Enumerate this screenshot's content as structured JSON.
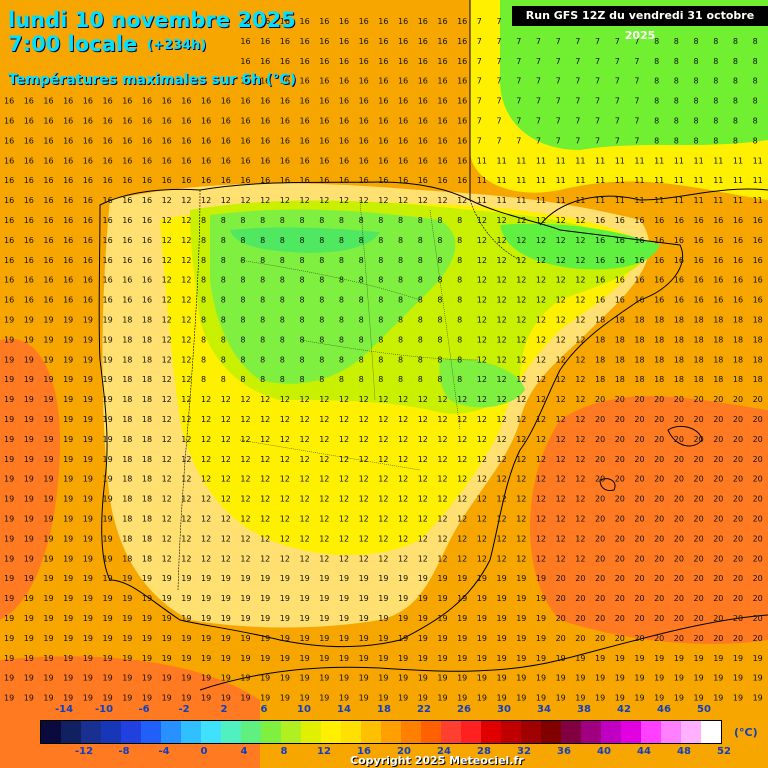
{
  "header": {
    "date": "lundi 10 novembre 2025",
    "time": "7:00 locale",
    "lead": "(+234h)",
    "parameter": "Températures maximales sur 6h (°C)",
    "run": "Run GFS 12Z du vendredi 31 octobre 2025"
  },
  "legend": {
    "top_labels": [
      "-14",
      "-10",
      "-6",
      "-2",
      "2",
      "6",
      "10",
      "14",
      "18",
      "22",
      "26",
      "30",
      "34",
      "38",
      "42",
      "46",
      "50"
    ],
    "bottom_labels": [
      "-12",
      "-8",
      "-4",
      "0",
      "4",
      "8",
      "12",
      "16",
      "20",
      "24",
      "28",
      "32",
      "36",
      "40",
      "44",
      "48",
      "52"
    ],
    "unit": "(°C)",
    "colors": [
      "#0a0a3c",
      "#102060",
      "#1a3090",
      "#1836b8",
      "#2040e0",
      "#2060f8",
      "#2890ff",
      "#30c0ff",
      "#40e0ff",
      "#50f0c0",
      "#60f080",
      "#80f040",
      "#b0f020",
      "#e0f000",
      "#fff000",
      "#ffe000",
      "#ffc000",
      "#ffa000",
      "#ff8000",
      "#ff6000",
      "#ff4030",
      "#ff2020",
      "#e00000",
      "#c00000",
      "#a00000",
      "#800000",
      "#800040",
      "#a00080",
      "#c000c0",
      "#e000e0",
      "#ff40ff",
      "#ff80ff",
      "#ffb0ff",
      "#ffffff"
    ]
  },
  "copyright": "Copyright 2025 Meteociel.fr",
  "colors": {
    "sea_warm": "#f7a600",
    "orange_hot": "#ff7a20",
    "yellow_light": "#ffe070",
    "yellow": "#fff000",
    "green_yellow": "#c8f000",
    "green": "#60f040",
    "title_cyan": "#00e0ff"
  }
}
